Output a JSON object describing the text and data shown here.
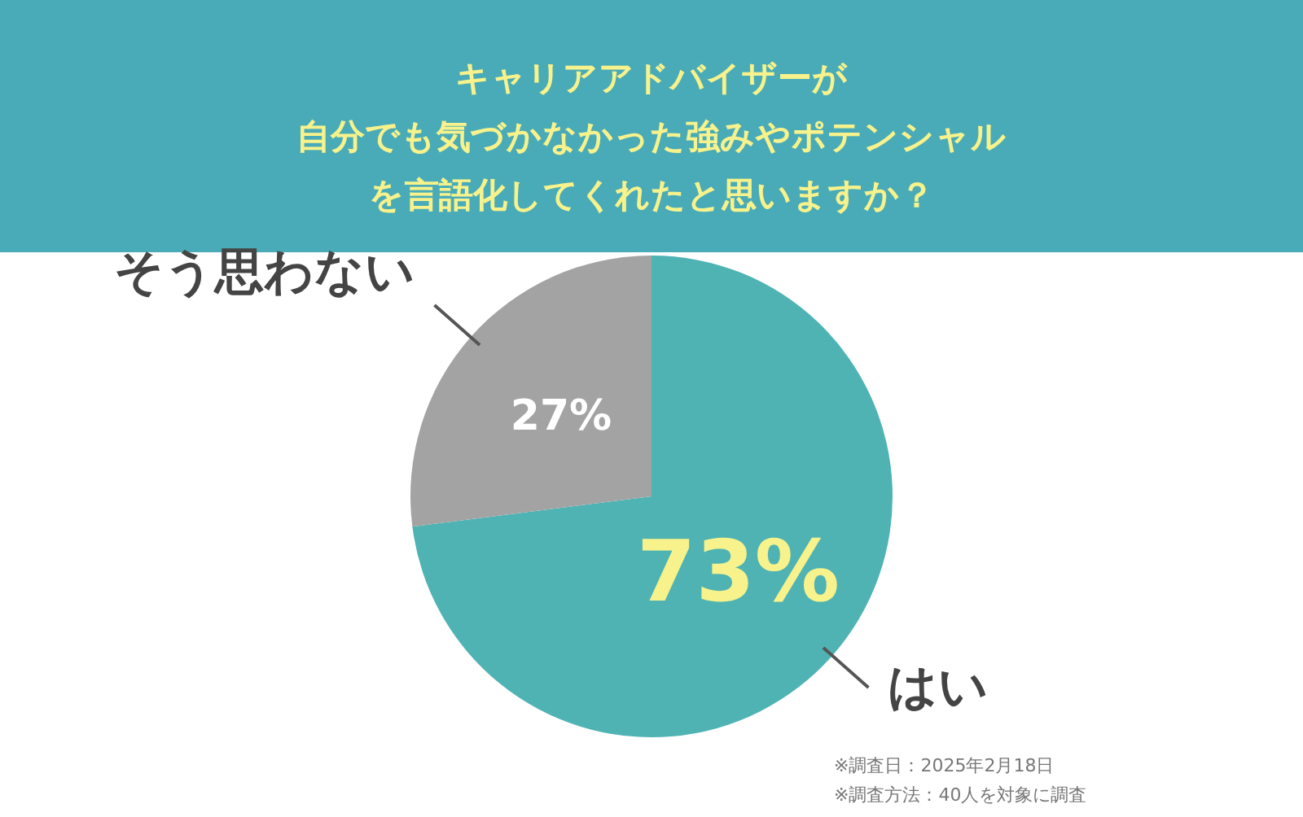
{
  "chart_data": {
    "type": "pie",
    "title": "キャリアアドバイザーが",
    "subtitle": "自分でも気づかなかった強みやポテンシャルを言語化してくれたと思いますか？",
    "categories": [
      "はい",
      "そう思わない"
    ],
    "values": [
      73,
      27
    ],
    "colors": [
      "#4fb3b4",
      "#a3a3a3"
    ],
    "value_labels": [
      "73%",
      "27%"
    ],
    "annotations": [
      "※調査日：2025年2月18日",
      "※調査方法：40人を対象に調査"
    ]
  }
}
